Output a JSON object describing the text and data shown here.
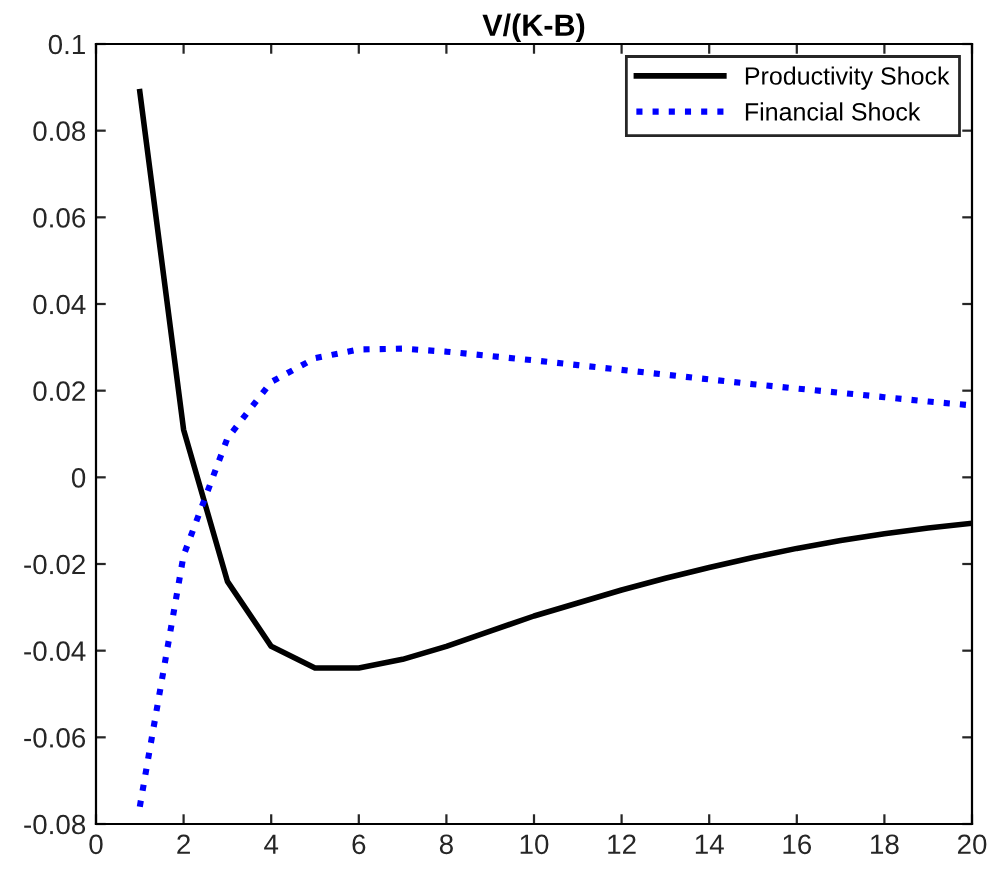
{
  "chart_data": {
    "type": "line",
    "title": "V/(K-B)",
    "x": [
      1,
      2,
      3,
      4,
      5,
      6,
      7,
      8,
      9,
      10,
      11,
      12,
      13,
      14,
      15,
      16,
      17,
      18,
      19,
      20
    ],
    "series": [
      {
        "name": "Productivity Shock",
        "color": "#000000",
        "line_style": "solid",
        "values": [
          0.089,
          0.011,
          -0.024,
          -0.039,
          -0.044,
          -0.044,
          -0.042,
          -0.039,
          -0.0355,
          -0.032,
          -0.029,
          -0.026,
          -0.0233,
          -0.0208,
          -0.0185,
          -0.0164,
          -0.0146,
          -0.013,
          -0.0117,
          -0.0106
        ]
      },
      {
        "name": "Financial Shock",
        "color": "#0000ff",
        "line_style": "dotted",
        "values": [
          -0.076,
          -0.018,
          0.009,
          0.022,
          0.0275,
          0.0295,
          0.0297,
          0.029,
          0.028,
          0.027,
          0.0259,
          0.0248,
          0.0237,
          0.0226,
          0.0215,
          0.0205,
          0.0195,
          0.0185,
          0.0175,
          0.0166
        ]
      }
    ],
    "xlim": [
      0,
      20
    ],
    "xticks": [
      0,
      2,
      4,
      6,
      8,
      10,
      12,
      14,
      16,
      18,
      20
    ],
    "ylim": [
      -0.08,
      0.1
    ],
    "yticks": [
      -0.08,
      -0.06,
      -0.04,
      -0.02,
      0,
      0.02,
      0.04,
      0.06,
      0.08,
      0.1
    ],
    "grid": false,
    "legend": "top right"
  }
}
